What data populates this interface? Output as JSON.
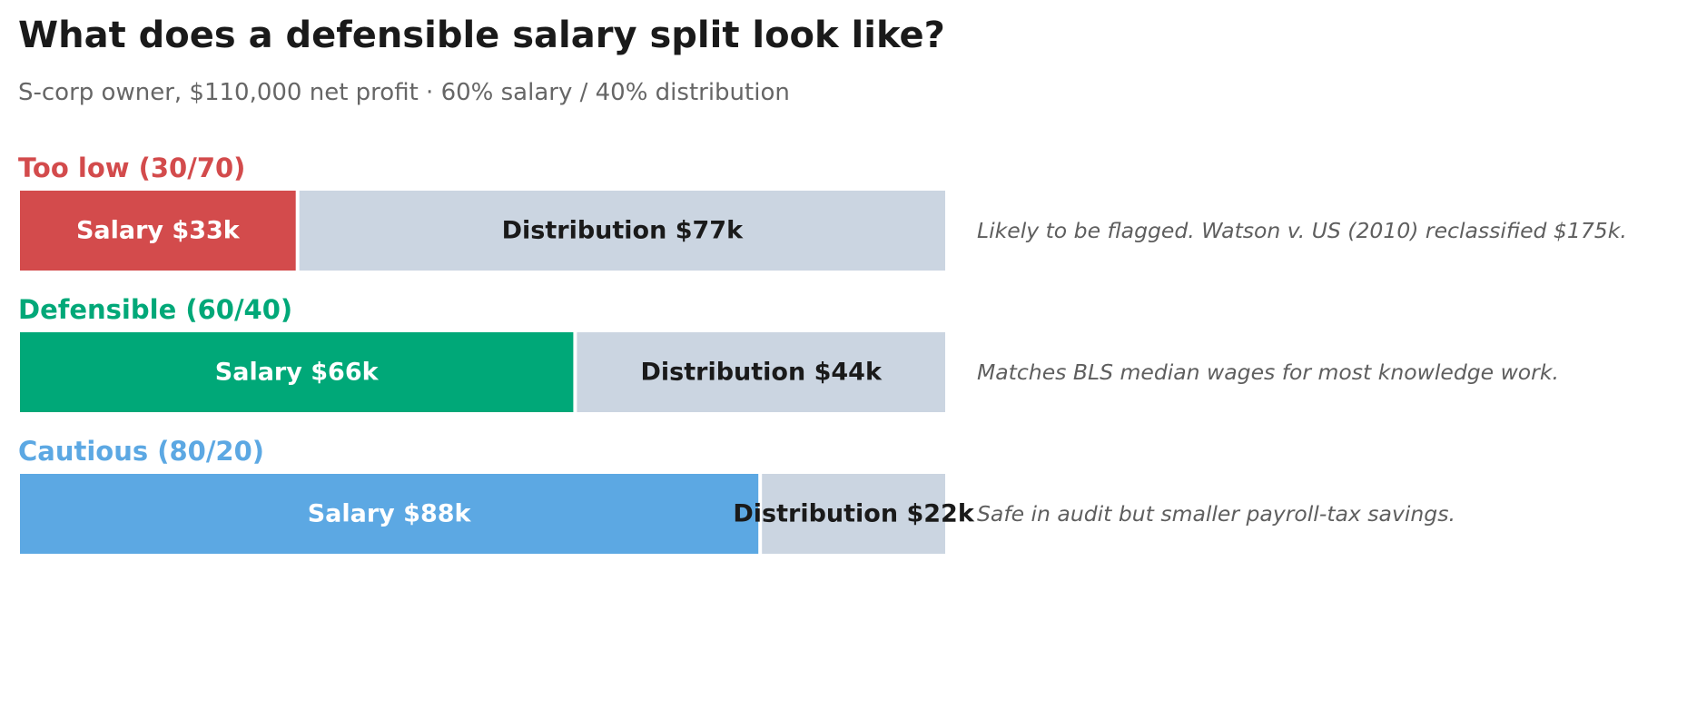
{
  "chart_data": {
    "type": "bar",
    "stacked": true,
    "orientation": "horizontal",
    "title": "What does a defensible salary split look like?",
    "subtitle": "S-corp owner, $110,000 net profit · 60% salary / 40% distribution",
    "total": 110,
    "rows": [
      {
        "label": "Too low (30/70)",
        "color": "#d34b4c",
        "segments": [
          {
            "label": "Salary $33k",
            "value": 33,
            "color": "#d34b4c",
            "text_color": "#ffffff"
          },
          {
            "label": "Distribution $77k",
            "value": 77,
            "color": "#cbd5e1",
            "text_color": "#1a1a1a"
          }
        ],
        "note": "Likely to be flagged. Watson v. US (2010) reclassified $175k."
      },
      {
        "label": "Defensible (60/40)",
        "color": "#00a878",
        "segments": [
          {
            "label": "Salary $66k",
            "value": 66,
            "color": "#00a878",
            "text_color": "#ffffff"
          },
          {
            "label": "Distribution $44k",
            "value": 44,
            "color": "#cbd5e1",
            "text_color": "#1a1a1a"
          }
        ],
        "note": "Matches BLS median wages for most knowledge work."
      },
      {
        "label": "Cautious (80/20)",
        "color": "#5ca8e3",
        "segments": [
          {
            "label": "Salary $88k",
            "value": 88,
            "color": "#5ca8e3",
            "text_color": "#ffffff"
          },
          {
            "label": "Distribution $22k",
            "value": 22,
            "color": "#cbd5e1",
            "text_color": "#1a1a1a"
          }
        ],
        "note": "Safe in audit but smaller payroll-tax savings."
      }
    ]
  }
}
